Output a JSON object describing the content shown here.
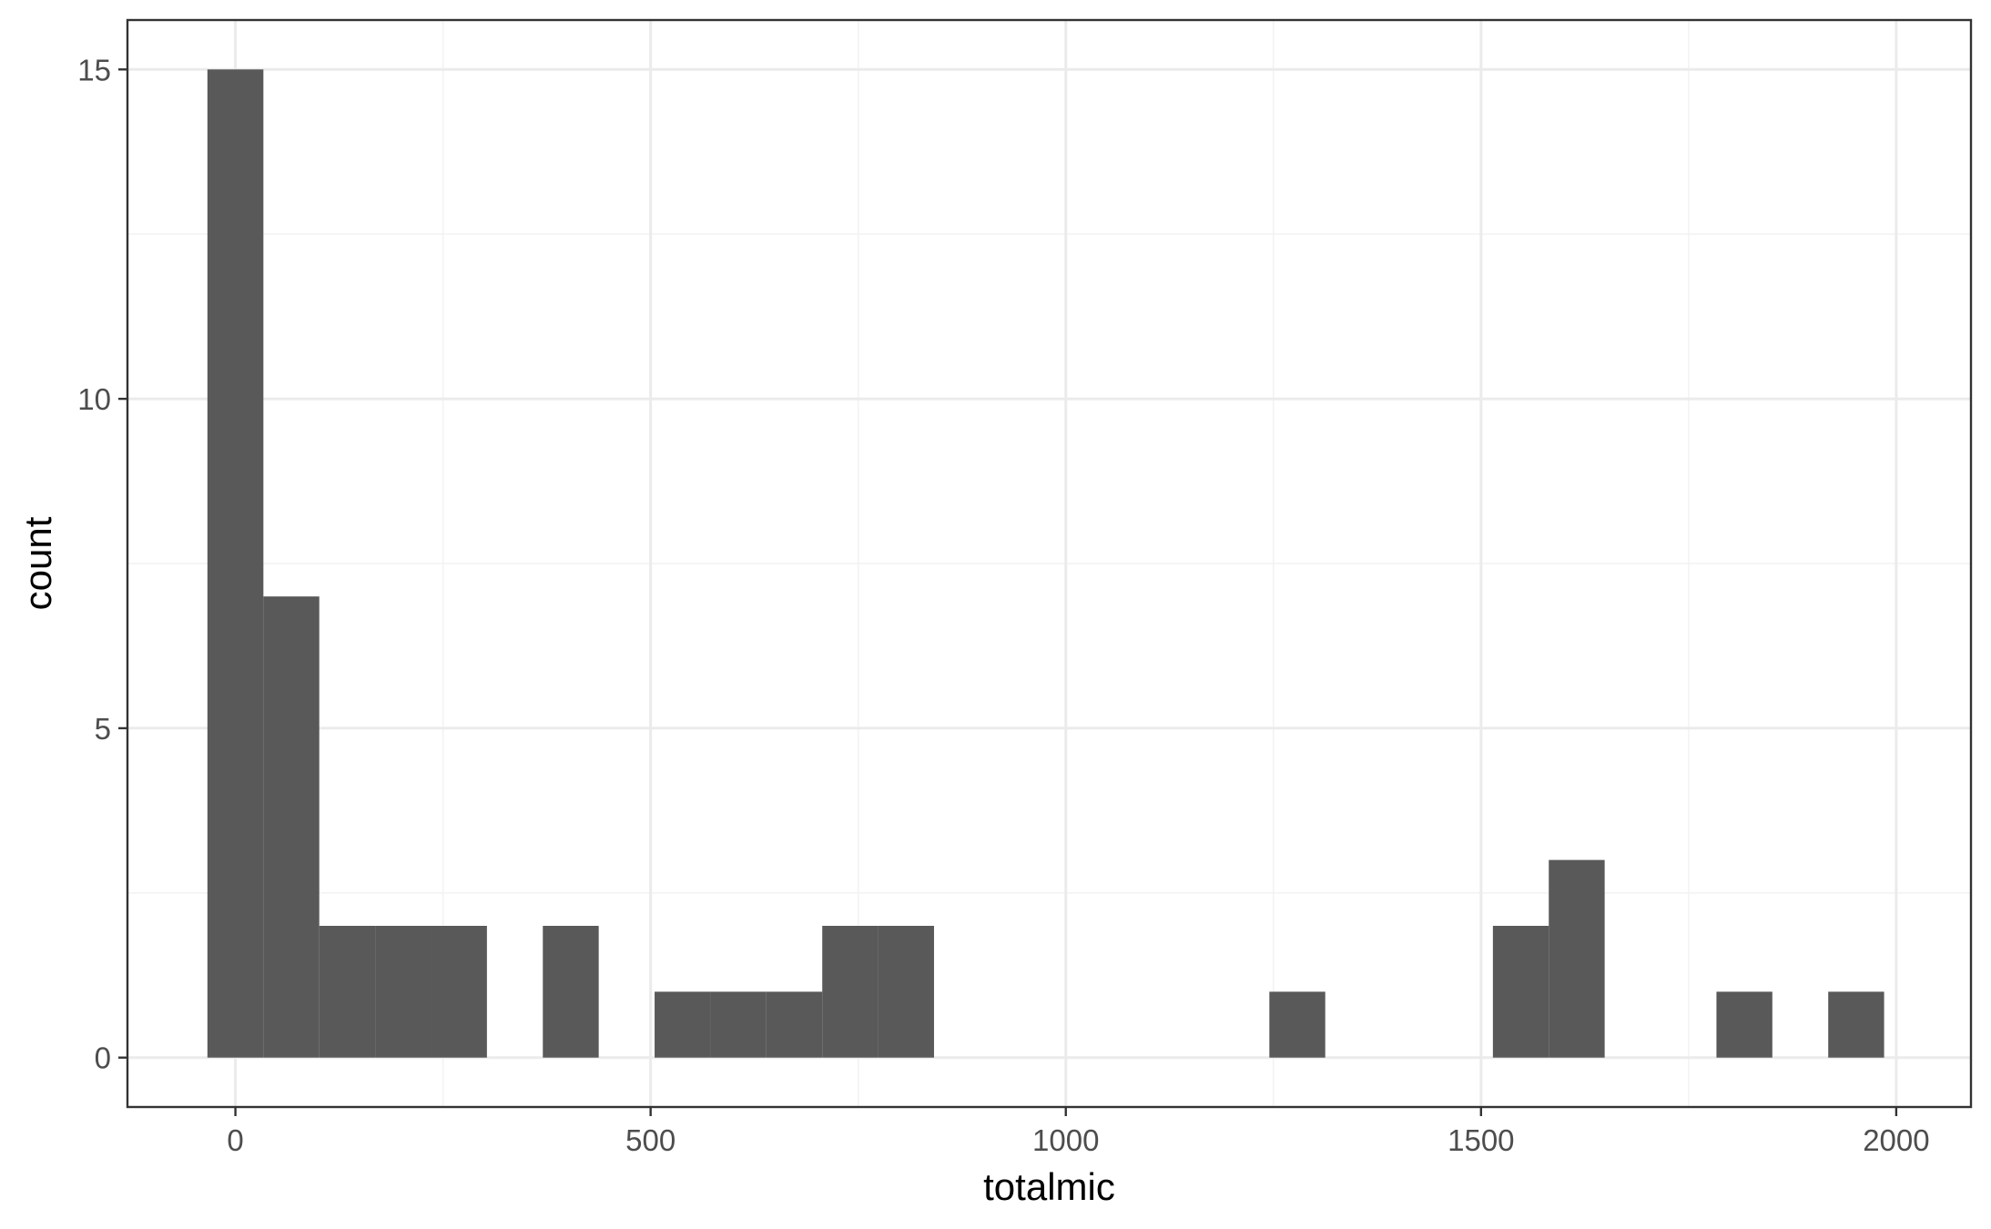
{
  "chart_data": {
    "type": "bar",
    "subtype": "histogram",
    "title": "",
    "xlabel": "totalmic",
    "ylabel": "count",
    "xlim": [
      -130,
      2090
    ],
    "ylim": [
      -0.75,
      15.75
    ],
    "x_ticks": [
      0,
      500,
      1000,
      1500,
      2000
    ],
    "x_tick_labels": [
      "0",
      "500",
      "1000",
      "1500",
      "2000"
    ],
    "y_ticks": [
      0,
      5,
      10,
      15
    ],
    "y_tick_labels": [
      "0",
      "5",
      "10",
      "15"
    ],
    "x_minor_grid": [
      250,
      750,
      1250,
      1750
    ],
    "y_minor_grid": [
      2.5,
      7.5,
      12.5
    ],
    "grid": true,
    "legend": "none",
    "bin_width": 67.3,
    "bins": [
      {
        "x0": -33.7,
        "x1": 33.7,
        "count": 15
      },
      {
        "x0": 33.7,
        "x1": 101.0,
        "count": 7
      },
      {
        "x0": 101.0,
        "x1": 168.3,
        "count": 2
      },
      {
        "x0": 168.3,
        "x1": 235.6,
        "count": 2
      },
      {
        "x0": 235.6,
        "x1": 302.9,
        "count": 2
      },
      {
        "x0": 370.2,
        "x1": 437.5,
        "count": 2
      },
      {
        "x0": 504.8,
        "x1": 572.1,
        "count": 1
      },
      {
        "x0": 572.1,
        "x1": 639.4,
        "count": 1
      },
      {
        "x0": 639.4,
        "x1": 706.7,
        "count": 1
      },
      {
        "x0": 706.7,
        "x1": 774.0,
        "count": 2
      },
      {
        "x0": 774.0,
        "x1": 841.3,
        "count": 2
      },
      {
        "x0": 1245.1,
        "x1": 1312.4,
        "count": 1
      },
      {
        "x0": 1514.3,
        "x1": 1581.6,
        "count": 2
      },
      {
        "x0": 1581.6,
        "x1": 1648.9,
        "count": 3
      },
      {
        "x0": 1783.5,
        "x1": 1850.8,
        "count": 1
      },
      {
        "x0": 1918.1,
        "x1": 1985.4,
        "count": 1
      }
    ],
    "colors": {
      "bar_fill": "#595959",
      "panel_border": "#333333",
      "grid_major": "#ebebeb",
      "grid_minor": "#f2f2f2"
    }
  }
}
